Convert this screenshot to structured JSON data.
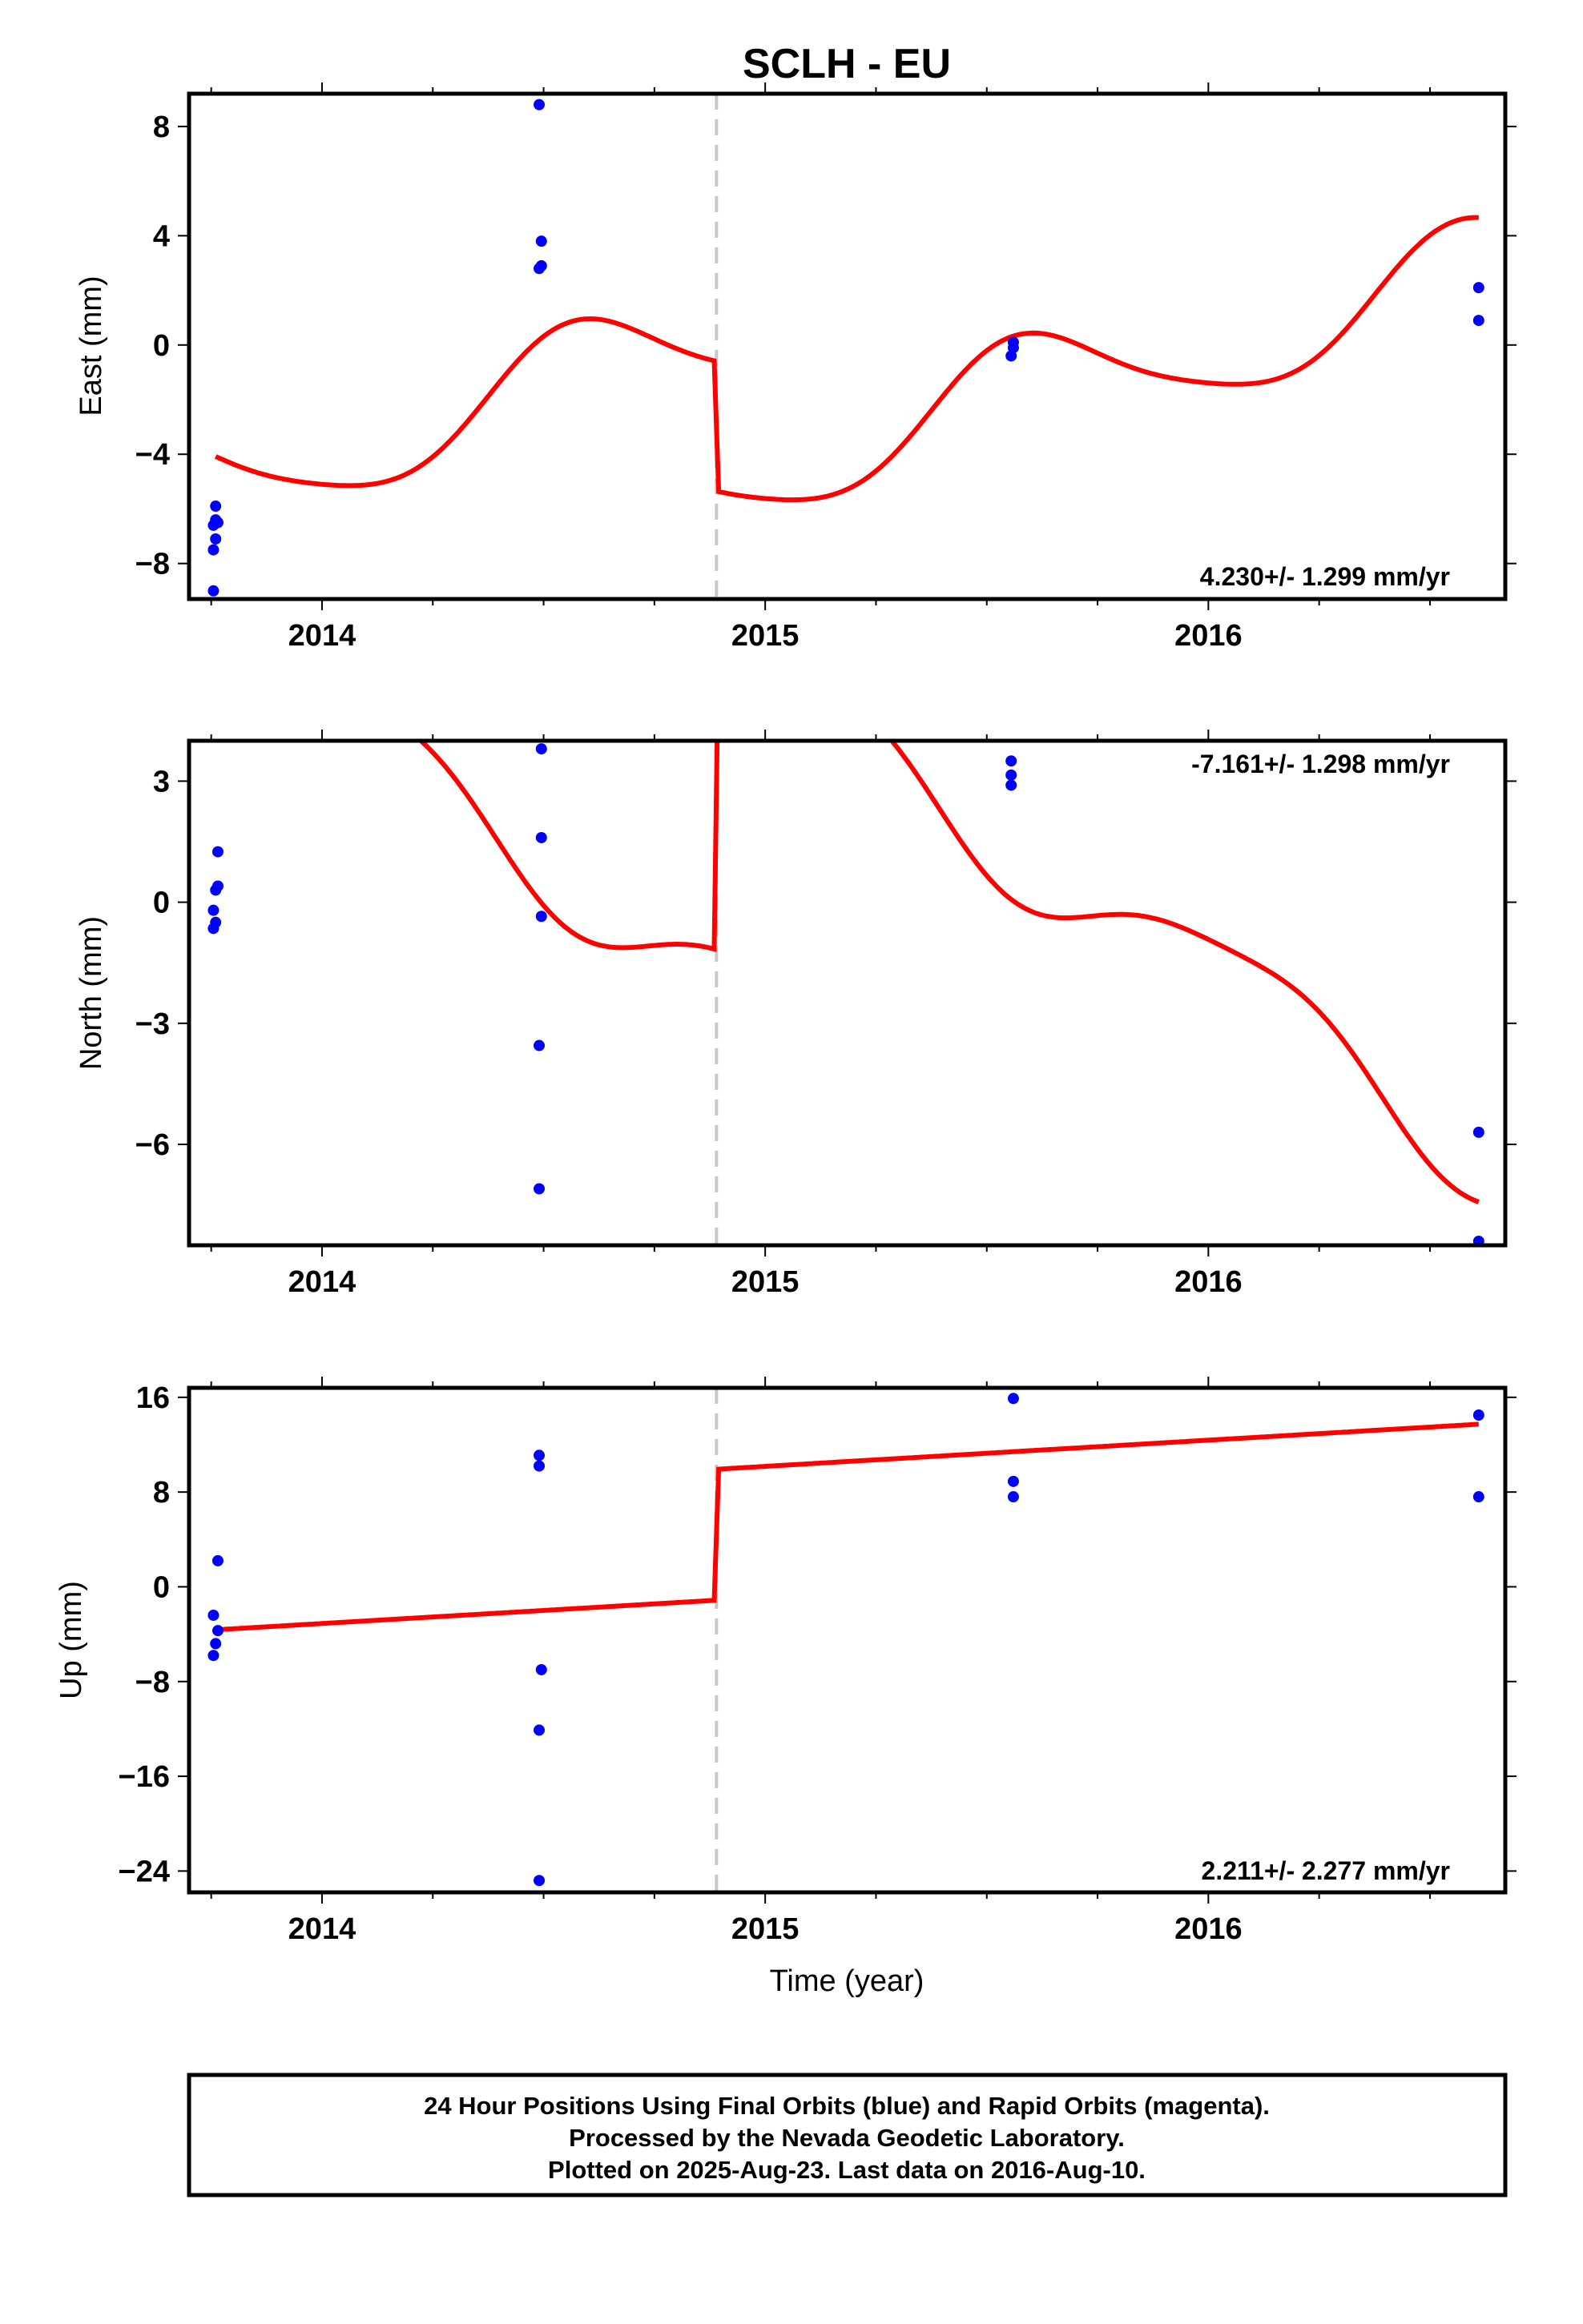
{
  "title": "SCLH - EU",
  "footer": {
    "line1": "24 Hour Positions Using Final Orbits (blue) and Rapid Orbits (magenta).",
    "line2": "Processed by the Nevada Geodetic Laboratory.",
    "line3": "Plotted on 2025-Aug-23. Last data on 2016-Aug-10."
  },
  "colors": {
    "data_points": "#0000ff",
    "model_line": "#ff0000",
    "break_line": "#c8c8c8",
    "frame": "#000000"
  },
  "chart_data": [
    {
      "type": "scatter",
      "name": "east",
      "ylabel": "East (mm)",
      "xlabel": "",
      "rate_label": "4.230+/- 1.299 mm/yr",
      "xlim": [
        2013.7,
        2016.67
      ],
      "ylim": [
        -9.3,
        9.2
      ],
      "xticks": [
        2014,
        2015,
        2016
      ],
      "xtick_labels": [
        "2014",
        "2015",
        "2016"
      ],
      "yticks": [
        8,
        4,
        0,
        -4,
        -8
      ],
      "ytick_labels": [
        "8",
        "4",
        "0",
        "−4",
        "−8"
      ],
      "break_year": 2014.89,
      "points": [
        [
          2013.76,
          -5.9
        ],
        [
          2013.76,
          -6.4
        ],
        [
          2013.755,
          -6.6
        ],
        [
          2013.765,
          -6.5
        ],
        [
          2013.76,
          -7.1
        ],
        [
          2013.755,
          -7.5
        ],
        [
          2013.755,
          -9.0
        ],
        [
          2014.49,
          8.8
        ],
        [
          2014.495,
          3.8
        ],
        [
          2014.49,
          2.8
        ],
        [
          2014.495,
          2.9
        ],
        [
          2015.56,
          0.1
        ],
        [
          2015.56,
          -0.1
        ],
        [
          2015.555,
          -0.4
        ],
        [
          2016.61,
          2.1
        ],
        [
          2016.61,
          0.9
        ]
      ],
      "model_segments": [
        {
          "start": 2013.76,
          "end": 2014.885,
          "offset": -3.75,
          "rate": 4.23,
          "sin": -1.1,
          "cos": -1.65,
          "sin2": 0.1,
          "cos2": 0.3
        },
        {
          "start": 2014.895,
          "end": 2016.61,
          "offset": -8.5,
          "rate": 4.23,
          "sin": -1.1,
          "cos": -1.65,
          "sin2": 0.1,
          "cos2": 0.3
        }
      ]
    },
    {
      "type": "scatter",
      "name": "north",
      "ylabel": "North (mm)",
      "xlabel": "",
      "rate_label": "-7.161+/- 1.298 mm/yr",
      "xlim": [
        2013.7,
        2016.67
      ],
      "ylim": [
        -8.5,
        4.0
      ],
      "xticks": [
        2014,
        2015,
        2016
      ],
      "xtick_labels": [
        "2014",
        "2015",
        "2016"
      ],
      "yticks": [
        3,
        0,
        -3,
        -6
      ],
      "ytick_labels": [
        "3",
        "0",
        "−3",
        "−6"
      ],
      "break_year": 2014.89,
      "points": [
        [
          2013.765,
          1.25
        ],
        [
          2013.765,
          0.4
        ],
        [
          2013.76,
          0.3
        ],
        [
          2013.755,
          -0.2
        ],
        [
          2013.76,
          -0.5
        ],
        [
          2013.755,
          -0.65
        ],
        [
          2014.495,
          3.8
        ],
        [
          2014.495,
          1.6
        ],
        [
          2014.495,
          -0.35
        ],
        [
          2014.49,
          -3.55
        ],
        [
          2014.49,
          -7.1
        ],
        [
          2015.555,
          3.5
        ],
        [
          2015.555,
          3.15
        ],
        [
          2015.555,
          2.9
        ],
        [
          2016.61,
          -5.7
        ],
        [
          2016.61,
          -8.4
        ]
      ],
      "model_segments": [
        {
          "start": 2013.76,
          "end": 2014.885,
          "offset": 4.7,
          "rate": -7.161,
          "sin": 0.6,
          "cos": 1.0,
          "sin2": -0.15,
          "cos2": -0.2
        },
        {
          "start": 2014.895,
          "end": 2016.61,
          "offset": 12.6,
          "rate": -7.161,
          "sin": 0.6,
          "cos": 1.0,
          "sin2": -0.15,
          "cos2": -0.2
        }
      ]
    },
    {
      "type": "scatter",
      "name": "up",
      "ylabel": "Up (mm)",
      "xlabel": "Time (year)",
      "rate_label": "2.211+/- 2.277 mm/yr",
      "xlim": [
        2013.7,
        2016.67
      ],
      "ylim": [
        -25.8,
        16.8
      ],
      "xticks": [
        2014,
        2015,
        2016
      ],
      "xtick_labels": [
        "2014",
        "2015",
        "2016"
      ],
      "yticks": [
        16,
        8,
        0,
        -8,
        -16,
        -24
      ],
      "ytick_labels": [
        "16",
        "8",
        "0",
        "−8",
        "−16",
        "−24"
      ],
      "break_year": 2014.89,
      "points": [
        [
          2013.765,
          2.2
        ],
        [
          2013.755,
          -2.4
        ],
        [
          2013.765,
          -3.7
        ],
        [
          2013.76,
          -4.8
        ],
        [
          2013.755,
          -5.8
        ],
        [
          2014.49,
          11.1
        ],
        [
          2014.49,
          10.2
        ],
        [
          2014.495,
          -7.0
        ],
        [
          2014.49,
          -12.1
        ],
        [
          2014.49,
          -24.8
        ],
        [
          2015.56,
          15.9
        ],
        [
          2015.56,
          8.9
        ],
        [
          2015.56,
          7.6
        ],
        [
          2016.61,
          14.5
        ],
        [
          2016.61,
          7.6
        ]
      ],
      "model_segments": [
        {
          "start": 2013.76,
          "end": 2014.885,
          "offset": -3.1,
          "rate": 2.211,
          "sin": 0,
          "cos": 0,
          "sin2": 0,
          "cos2": 0
        },
        {
          "start": 2014.895,
          "end": 2016.61,
          "offset": 7.96,
          "rate": 2.211,
          "sin": 0,
          "cos": 0,
          "sin2": 0,
          "cos2": 0
        }
      ]
    }
  ]
}
